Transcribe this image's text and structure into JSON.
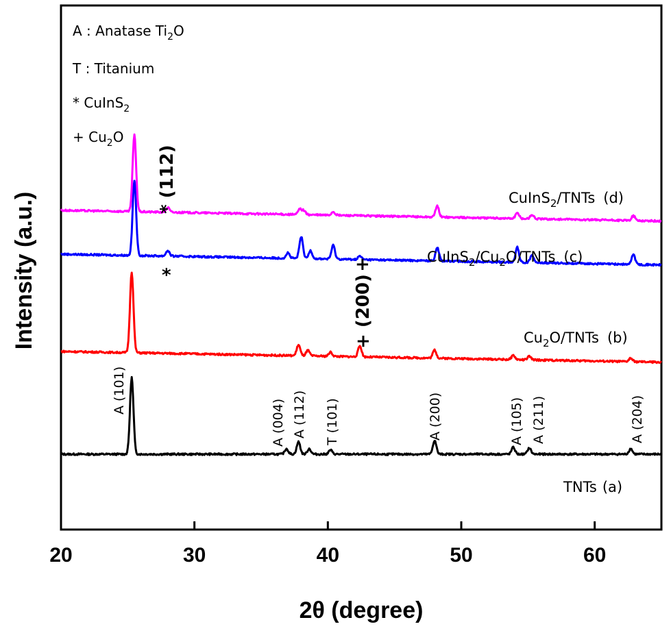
{
  "chart_data": {
    "type": "line",
    "xlabel": "2θ (degree)",
    "ylabel": "Intensity (a.u.)",
    "xlim": [
      20,
      65
    ],
    "x_ticks": [
      "20",
      "30",
      "40",
      "50",
      "60"
    ],
    "grid": false,
    "legend_items": [
      {
        "marker": "A",
        "base": "A : Anatase Ti",
        "sub": "2",
        "tail": "O"
      },
      {
        "marker": "T",
        "base": "T : Titanium",
        "sub": "",
        "tail": ""
      },
      {
        "marker": "*",
        "base": "*  CuInS",
        "sub": "2",
        "tail": ""
      },
      {
        "marker": "+",
        "base": "+ Cu",
        "sub": "2",
        "tail": "O"
      }
    ],
    "series": [
      {
        "label_base": "TNTs",
        "label_sub": "",
        "label_tail": "",
        "tag": "(a)",
        "color": "#000000",
        "baseline": 0,
        "peaks": [
          [
            25.3,
            112
          ],
          [
            36.9,
            8
          ],
          [
            37.8,
            18
          ],
          [
            38.6,
            8
          ],
          [
            40.2,
            6
          ],
          [
            48.0,
            20
          ],
          [
            53.9,
            10
          ],
          [
            55.1,
            9
          ],
          [
            62.7,
            8
          ]
        ]
      },
      {
        "label_base": "Cu",
        "label_sub": "2",
        "label_tail": "O/TNTs",
        "tag": "(b)",
        "color": "#ff0000",
        "baseline": 150,
        "peaks": [
          [
            25.3,
            118
          ],
          [
            37.8,
            16
          ],
          [
            38.5,
            8
          ],
          [
            40.2,
            6
          ],
          [
            42.4,
            16
          ],
          [
            48.0,
            12
          ],
          [
            53.9,
            6
          ],
          [
            55.1,
            5
          ],
          [
            62.7,
            5
          ]
        ]
      },
      {
        "label_base": "CuInS",
        "label_sub": "2",
        "label_tail": "/Cu2O/TNTs",
        "tag": "(c)",
        "color": "#0000ff",
        "baseline": 292,
        "peaks": [
          [
            25.5,
            110
          ],
          [
            28.0,
            8
          ],
          [
            37.0,
            8
          ],
          [
            38.0,
            32
          ],
          [
            38.7,
            12
          ],
          [
            40.4,
            20
          ],
          [
            42.4,
            5
          ],
          [
            48.2,
            20
          ],
          [
            54.2,
            22
          ],
          [
            55.3,
            12
          ],
          [
            62.9,
            15
          ]
        ]
      },
      {
        "label_base": "CuInS",
        "label_sub": "2",
        "label_tail": "/TNTs",
        "tag": "(d)",
        "color": "#ff00ff",
        "baseline": 356,
        "peaks": [
          [
            25.5,
            112
          ],
          [
            28.0,
            7
          ],
          [
            37.9,
            8
          ],
          [
            38.2,
            6
          ],
          [
            40.4,
            5
          ],
          [
            48.2,
            16
          ],
          [
            54.2,
            8
          ],
          [
            55.3,
            6
          ],
          [
            62.9,
            7
          ]
        ]
      }
    ],
    "peak_labels": [
      "A (101)",
      "A (004)",
      "A (112)",
      "T (101)",
      "A (200)",
      "A (105)",
      "A (211)",
      "A (204)"
    ],
    "annotations": {
      "star_112": "* (112)",
      "star": "*",
      "plus": "+",
      "plus_200": "+ (200)"
    }
  }
}
